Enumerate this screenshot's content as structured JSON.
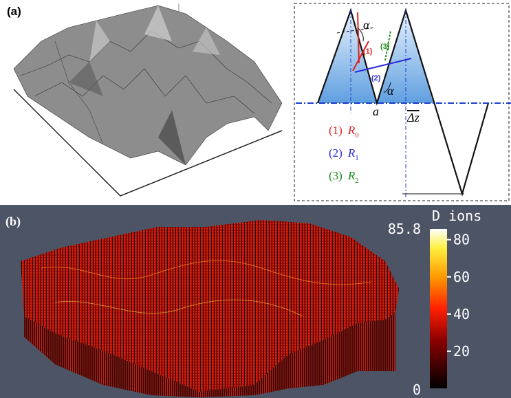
{
  "panel_a": {
    "label": "(a)",
    "diagram": {
      "angle_top": "α",
      "angle_bottom": "α",
      "point": "a",
      "depth": "Δz",
      "paths": [
        "(1)",
        "(2)",
        "(3)"
      ],
      "legend": [
        {
          "number": "(1)",
          "symbol": "R",
          "subscript": "0",
          "color": "#e02020"
        },
        {
          "number": "(2)",
          "symbol": "R",
          "subscript": "1",
          "color": "#2a2ad8"
        },
        {
          "number": "(3)",
          "symbol": "R",
          "subscript": "2",
          "color": "#1a8a1a"
        }
      ]
    }
  },
  "panel_b": {
    "label": "(b)",
    "colorbar": {
      "title": "D ions",
      "min": 0,
      "max": 85.8,
      "ticks": [
        80,
        60,
        40,
        20
      ]
    }
  }
}
